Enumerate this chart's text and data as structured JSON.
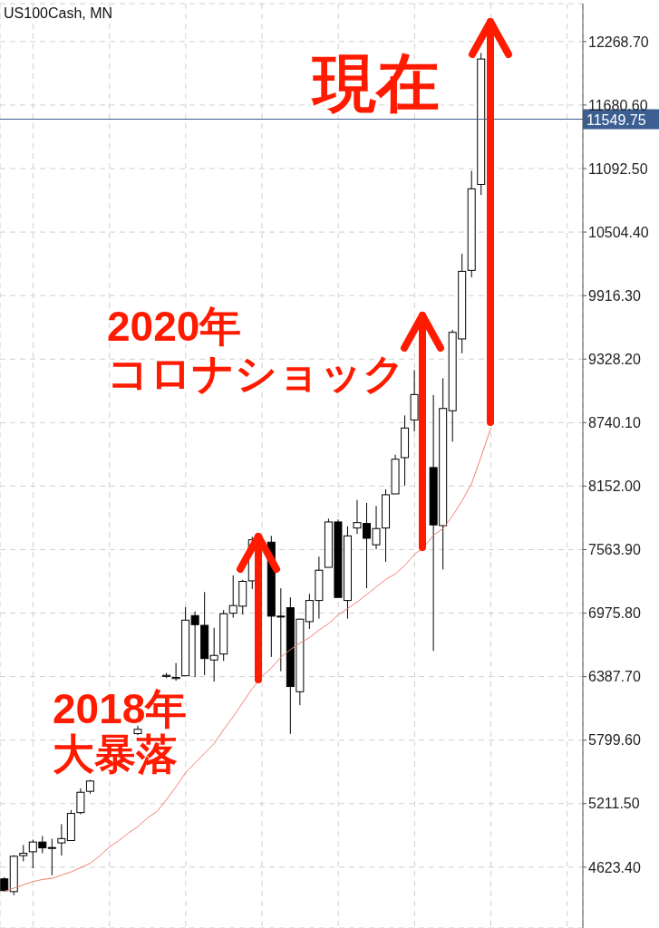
{
  "chart_data": {
    "type": "candlestick",
    "title": "US100Cash, MN",
    "categories": [
      null,
      null,
      null,
      null,
      null,
      null,
      null,
      null,
      null,
      null,
      null,
      null,
      null,
      null,
      null,
      null,
      null,
      null,
      null,
      null,
      null,
      null,
      null,
      null,
      null,
      null,
      null,
      null,
      null,
      null,
      null,
      null,
      null,
      null,
      null,
      null,
      null,
      null,
      null,
      null,
      null,
      null,
      null,
      null,
      null,
      null,
      null,
      null,
      null,
      null,
      null,
      null
    ],
    "ohlc": [
      [
        4515,
        4530,
        4400,
        4406
      ],
      [
        4397,
        4735,
        4364,
        4724
      ],
      [
        4730,
        4828,
        4677,
        4752
      ],
      [
        4766,
        4878,
        4613,
        4856
      ],
      [
        4856,
        4911,
        4752,
        4802
      ],
      [
        4802,
        4886,
        4548,
        4805
      ],
      [
        4848,
        5022,
        4731,
        4888
      ],
      [
        4870,
        5152,
        4870,
        5121
      ],
      [
        5129,
        5353,
        5112,
        5317
      ],
      [
        5326,
        5432,
        5303,
        5421
      ],
      null,
      null,
      null,
      null,
      [
        5860,
        5935,
        5820,
        5900
      ],
      null,
      null,
      [
        6390,
        6422,
        6375,
        6400
      ],
      [
        6370,
        6514,
        6350,
        6380
      ],
      [
        6396,
        7031,
        6396,
        6911
      ],
      [
        6953,
        6992,
        6383,
        6869
      ],
      [
        6863,
        7171,
        6402,
        6555
      ],
      [
        6542,
        6840,
        6341,
        6584
      ],
      [
        6597,
        7004,
        6533,
        6970
      ],
      [
        6975,
        7325,
        6933,
        7046
      ],
      [
        7040,
        7285,
        6962,
        7270
      ],
      [
        7275,
        7683,
        7199,
        7655
      ],
      null,
      [
        7633,
        7691,
        6570,
        6948
      ],
      [
        6948,
        7206,
        6438,
        6943
      ],
      [
        7026,
        7122,
        5857,
        6296
      ],
      [
        6248,
        6925,
        6123,
        6920
      ],
      [
        6897,
        7155,
        6830,
        7093
      ],
      [
        7093,
        7499,
        6925,
        7373
      ],
      [
        7400,
        7851,
        7400,
        7820
      ],
      [
        7820,
        7843,
        7121,
        7121
      ],
      [
        7093,
        7780,
        6925,
        7691
      ],
      [
        7764,
        8024,
        7709,
        7814
      ],
      [
        7806,
        7996,
        7206,
        7669
      ],
      [
        7609,
        7968,
        7567,
        7759
      ],
      [
        7764,
        8122,
        7451,
        8072
      ],
      [
        8080,
        8443,
        8080,
        8401
      ],
      [
        8416,
        8807,
        8156,
        8690
      ],
      [
        8765,
        9227,
        8659,
        9000
      ],
      null,
      [
        8324,
        8995,
        6626,
        7793
      ],
      [
        7786,
        9151,
        7381,
        8871
      ],
      [
        8850,
        9599,
        8564,
        9576
      ],
      [
        9515,
        10303,
        9382,
        10141
      ],
      [
        10150,
        11072,
        10085,
        10905
      ],
      [
        10946,
        12163,
        10848,
        12107
      ],
      null
    ],
    "series": [
      {
        "type": "line",
        "color": "#f08070",
        "values": [
          4400,
          4430,
          4460,
          4490,
          4510,
          4520,
          4550,
          4580,
          4620,
          4660,
          4730,
          4810,
          4870,
          4940,
          5000,
          5080,
          5140,
          5250,
          5370,
          5500,
          5590,
          5680,
          5770,
          5900,
          6020,
          6150,
          6280,
          6390,
          6470,
          6570,
          6640,
          6700,
          6750,
          6820,
          6880,
          6960,
          7020,
          7080,
          7150,
          7220,
          7290,
          7340,
          7420,
          7520,
          7590,
          7700,
          7760,
          7880,
          8020,
          8180,
          8430,
          8690
        ]
      }
    ],
    "ylim": [
      4060,
      12620
    ],
    "yticks": [
      {
        "value": 4623.4,
        "label": "4623.40"
      },
      {
        "value": 5211.5,
        "label": "5211.50"
      },
      {
        "value": 5799.6,
        "label": "5799.60"
      },
      {
        "value": 6387.7,
        "label": "6387.70"
      },
      {
        "value": 6975.8,
        "label": "6975.80"
      },
      {
        "value": 7563.9,
        "label": "7563.90"
      },
      {
        "value": 8152,
        "label": "8152.00"
      },
      {
        "value": 8740.1,
        "label": "8740.10"
      },
      {
        "value": 9328.2,
        "label": "9328.20"
      },
      {
        "value": 9916.3,
        "label": "9916.30"
      },
      {
        "value": 10504.4,
        "label": "10504.40"
      },
      {
        "value": 11092.5,
        "label": "11092.50"
      },
      {
        "value": 11680.6,
        "label": "11680.60"
      },
      {
        "value": 12268.7,
        "label": "12268.70"
      }
    ],
    "ref_lines": [
      {
        "axis": "y",
        "value": 11549.75,
        "label": "11549.75",
        "color": "#3c5e91"
      }
    ],
    "grid": true,
    "annotations": [
      "現在",
      "2020年",
      "コロナショック",
      "2018年",
      "大暴落"
    ]
  }
}
